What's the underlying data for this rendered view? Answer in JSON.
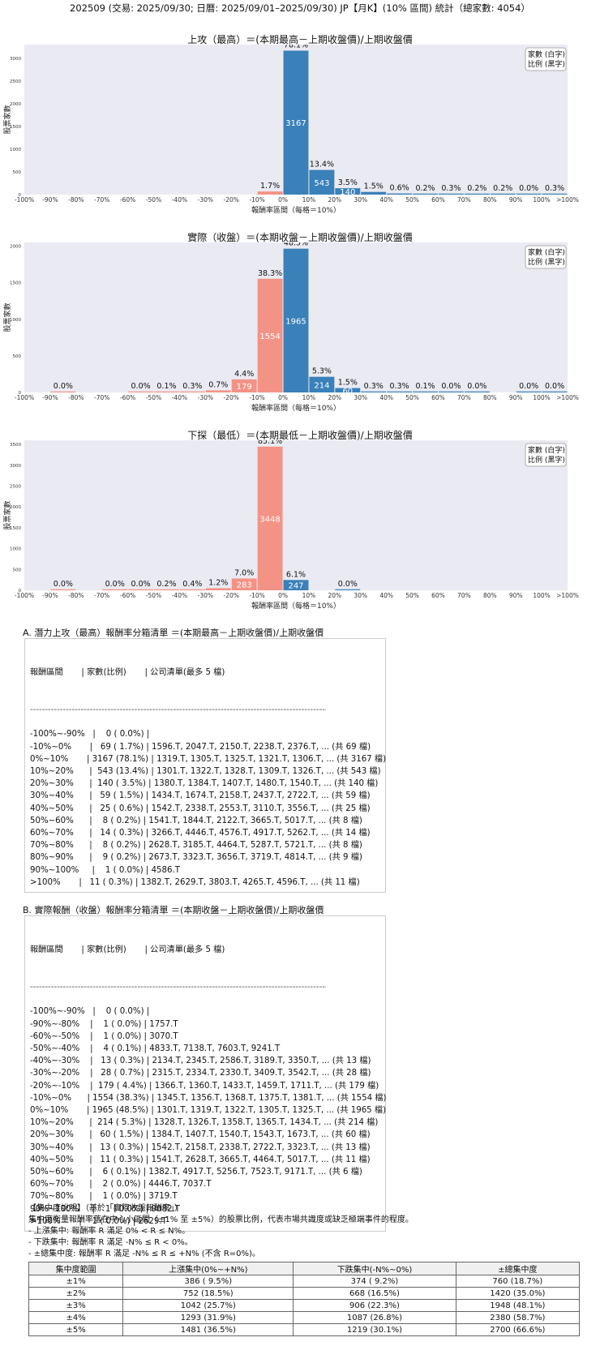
{
  "header": "202509 (交易: 2025/09/30; 日曆: 2025/09/01–2025/09/30) JP【月K】(10% 區間) 統計（總家數: 4054）",
  "legend_box": [
    "家數 (白字)",
    "比例 (黑字)"
  ],
  "colors": {
    "positive": "#3a80b9",
    "negative": "#f39386",
    "plot_bg": "#eaeaf2"
  },
  "chart_data": [
    {
      "type": "bar",
      "title": "上攻（最高）＝(本期最高－上期收盤價)/上期收盤價",
      "xlabel": "報酬率區間（每格＝10%）",
      "ylabel": "股票家數",
      "ylim": [
        0,
        3300
      ],
      "yticks": [
        0,
        500,
        1000,
        1500,
        2000,
        2500,
        3000
      ],
      "xtick_labels": [
        "-100%",
        "-90%",
        "-80%",
        "-70%",
        "-60%",
        "-50%",
        "-40%",
        "-30%",
        "-20%",
        "-10%",
        "0%",
        "10%",
        "20%",
        "30%",
        "40%",
        "50%",
        "60%",
        "70%",
        "80%",
        "90%",
        "100%",
        ">100%"
      ],
      "bins": [
        "-100%~-90%",
        "-90%~-80%",
        "-80%~-70%",
        "-70%~-60%",
        "-60%~-50%",
        "-50%~-40%",
        "-40%~-30%",
        "-30%~-20%",
        "-20%~-10%",
        "-10%~0%",
        "0%~10%",
        "10%~20%",
        "20%~30%",
        "30%~40%",
        "40%~50%",
        "50%~60%",
        "60%~70%",
        "70%~80%",
        "80%~90%",
        "90%~100%",
        ">100%"
      ],
      "values": [
        0,
        null,
        null,
        null,
        null,
        null,
        null,
        null,
        null,
        69,
        3167,
        543,
        140,
        59,
        25,
        8,
        14,
        8,
        9,
        1,
        11
      ],
      "pct_labels": [
        "",
        "",
        "",
        "",
        "",
        "",
        "",
        "",
        "",
        "1.7%",
        "78.1%",
        "13.4%",
        "3.5%",
        "1.5%",
        "0.6%",
        "0.2%",
        "0.3%",
        "0.2%",
        "0.2%",
        "0.0%",
        "0.3%"
      ],
      "count_labels": [
        "",
        "",
        "",
        "",
        "",
        "",
        "",
        "",
        "",
        "",
        "3167",
        "543",
        "140",
        "",
        "",
        "",
        "",
        "",
        "",
        "",
        ""
      ]
    },
    {
      "type": "bar",
      "title": "實際（收盤）＝(本期收盤－上期收盤價)/上期收盤價",
      "xlabel": "報酬率區間（每格＝10%）",
      "ylabel": "股票家數",
      "ylim": [
        0,
        2050
      ],
      "yticks": [
        0,
        500,
        1000,
        1500,
        2000
      ],
      "xtick_labels": [
        "-100%",
        "-90%",
        "-80%",
        "-70%",
        "-60%",
        "-50%",
        "-40%",
        "-30%",
        "-20%",
        "-10%",
        "0%",
        "10%",
        "20%",
        "30%",
        "40%",
        "50%",
        "60%",
        "70%",
        "80%",
        "90%",
        "100%",
        ">100%"
      ],
      "bins": [
        "-100%~-90%",
        "-90%~-80%",
        "-80%~-70%",
        "-70%~-60%",
        "-60%~-50%",
        "-50%~-40%",
        "-40%~-30%",
        "-30%~-20%",
        "-20%~-10%",
        "-10%~0%",
        "0%~10%",
        "10%~20%",
        "20%~30%",
        "30%~40%",
        "40%~50%",
        "50%~60%",
        "60%~70%",
        "70%~80%",
        "80%~90%",
        "90%~100%",
        ">100%"
      ],
      "values": [
        null,
        1,
        null,
        null,
        1,
        4,
        13,
        28,
        179,
        1554,
        1965,
        214,
        60,
        13,
        11,
        6,
        2,
        1,
        null,
        1,
        1
      ],
      "pct_labels": [
        "",
        "0.0%",
        "",
        "",
        "0.0%",
        "0.1%",
        "0.3%",
        "0.7%",
        "4.4%",
        "38.3%",
        "48.5%",
        "5.3%",
        "1.5%",
        "0.3%",
        "0.3%",
        "0.1%",
        "0.0%",
        "0.0%",
        "",
        "0.0%",
        "0.0%"
      ],
      "count_labels": [
        "",
        "",
        "",
        "",
        "",
        "",
        "",
        "",
        "179",
        "1554",
        "1965",
        "214",
        "60",
        "",
        "",
        "",
        "",
        "",
        "",
        "",
        ""
      ]
    },
    {
      "type": "bar",
      "title": "下探（最低）＝(本期最低－上期收盤價)/上期收盤價",
      "xlabel": "報酬率區間（每格＝10%）",
      "ylabel": "股票家數",
      "ylim": [
        0,
        3600
      ],
      "yticks": [
        0,
        500,
        1000,
        1500,
        2000,
        2500,
        3000,
        3500
      ],
      "xtick_labels": [
        "-100%",
        "-90%",
        "-80%",
        "-70%",
        "-60%",
        "-50%",
        "-40%",
        "-30%",
        "-20%",
        "-10%",
        "0%",
        "10%",
        "20%",
        "30%",
        "40%",
        "50%",
        "60%",
        "70%",
        "80%",
        "90%",
        "100%",
        ">100%"
      ],
      "bins": [
        "-100%~-90%",
        "-90%~-80%",
        "-80%~-70%",
        "-70%~-60%",
        "-60%~-50%",
        "-50%~-40%",
        "-40%~-30%",
        "-30%~-20%",
        "-20%~-10%",
        "-10%~0%",
        "0%~10%",
        "10%~20%",
        "20%~30%",
        "30%~40%",
        "40%~50%",
        "50%~60%",
        "60%~70%",
        "70%~80%",
        "80%~90%",
        "90%~100%",
        ">100%"
      ],
      "values": [
        null,
        1,
        null,
        1,
        1,
        9,
        17,
        50,
        283,
        3448,
        247,
        null,
        1,
        null,
        null,
        null,
        null,
        null,
        null,
        null,
        null
      ],
      "pct_labels": [
        "",
        "0.0%",
        "",
        "0.0%",
        "0.0%",
        "0.2%",
        "0.4%",
        "1.2%",
        "7.0%",
        "85.1%",
        "6.1%",
        "",
        "0.0%",
        "",
        "",
        "",
        "",
        "",
        "",
        "",
        ""
      ],
      "count_labels": [
        "",
        "",
        "",
        "",
        "",
        "",
        "",
        "",
        "283",
        "3448",
        "247",
        "",
        "",
        "",
        "",
        "",
        "",
        "",
        "",
        "",
        ""
      ]
    }
  ],
  "sectionA": {
    "title": "A. 潛力上攻（最高）報酬率分箱清單 ＝(本期最高－上期收盤價)/上期收盤價",
    "header": "報酬區間       | 家數(比例)       | 公司清單(最多 5 檔)",
    "dash": "------------------------------------------------------------------------------------------------------------------",
    "rows": [
      "-100%~-90%   |    0 ( 0.0%) |",
      "-10%~0%       |   69 ( 1.7%) | 1596.T, 2047.T, 2150.T, 2238.T, 2376.T, ... (共 69 檔)",
      "0%~10%       | 3167 (78.1%) | 1319.T, 1305.T, 1325.T, 1321.T, 1306.T, ... (共 3167 檔)",
      "10%~20%      |  543 (13.4%) | 1301.T, 1322.T, 1328.T, 1309.T, 1326.T, ... (共 543 檔)",
      "20%~30%      |  140 ( 3.5%) | 1380.T, 1384.T, 1407.T, 1480.T, 1540.T, ... (共 140 檔)",
      "30%~40%      |   59 ( 1.5%) | 1434.T, 1674.T, 2158.T, 2437.T, 2722.T, ... (共 59 檔)",
      "40%~50%      |   25 ( 0.6%) | 1542.T, 2338.T, 2553.T, 3110.T, 3556.T, ... (共 25 檔)",
      "50%~60%      |    8 ( 0.2%) | 1541.T, 1844.T, 2122.T, 3665.T, 5017.T, ... (共 8 檔)",
      "60%~70%      |   14 ( 0.3%) | 3266.T, 4446.T, 4576.T, 4917.T, 5262.T, ... (共 14 檔)",
      "70%~80%      |    8 ( 0.2%) | 2628.T, 3185.T, 4464.T, 5287.T, 5721.T, ... (共 8 檔)",
      "80%~90%      |    9 ( 0.2%) | 2673.T, 3323.T, 3656.T, 3719.T, 4814.T, ... (共 9 檔)",
      "90%~100%     |    1 ( 0.0%) | 4586.T",
      ">100%       |   11 ( 0.3%) | 1382.T, 2629.T, 3803.T, 4265.T, 4596.T, ... (共 11 檔)"
    ]
  },
  "sectionB": {
    "title": "B. 實際報酬（收盤）報酬率分箱清單 ＝(本期收盤－上期收盤價)/上期收盤價",
    "header": "報酬區間       | 家數(比例)       | 公司清單(最多 5 檔)",
    "dash": "------------------------------------------------------------------------------------------------------------------",
    "rows": [
      "-100%~-90%   |    0 ( 0.0%) |",
      "-90%~-80%    |    1 ( 0.0%) | 1757.T",
      "-60%~-50%    |    1 ( 0.0%) | 3070.T",
      "-50%~-40%    |    4 ( 0.1%) | 4833.T, 7138.T, 7603.T, 9241.T",
      "-40%~-30%    |   13 ( 0.3%) | 2134.T, 2345.T, 2586.T, 3189.T, 3350.T, ... (共 13 檔)",
      "-30%~-20%    |   28 ( 0.7%) | 2315.T, 2334.T, 2330.T, 3409.T, 3542.T, ... (共 28 檔)",
      "-20%~-10%    |  179 ( 4.4%) | 1366.T, 1360.T, 1433.T, 1459.T, 1711.T, ... (共 179 檔)",
      "-10%~0%      | 1554 (38.3%) | 1345.T, 1356.T, 1368.T, 1375.T, 1381.T, ... (共 1554 檔)",
      "0%~10%       | 1965 (48.5%) | 1301.T, 1319.T, 1322.T, 1305.T, 1325.T, ... (共 1965 檔)",
      "10%~20%      |  214 ( 5.3%) | 1328.T, 1326.T, 1358.T, 1365.T, 1434.T, ... (共 214 檔)",
      "20%~30%      |   60 ( 1.5%) | 1384.T, 1407.T, 1540.T, 1543.T, 1673.T, ... (共 60 檔)",
      "30%~40%      |   13 ( 0.3%) | 1542.T, 2158.T, 2338.T, 2722.T, 3323.T, ... (共 13 檔)",
      "40%~50%      |   11 ( 0.3%) | 1541.T, 2628.T, 3665.T, 4464.T, 5017.T, ... (共 11 檔)",
      "50%~60%      |    6 ( 0.1%) | 1382.T, 4917.T, 5256.T, 7523.T, 9171.T, ... (共 6 檔)",
      "60%~70%      |    2 ( 0.0%) | 4446.T, 7037.T",
      "70%~80%      |    1 ( 0.0%) | 3719.T",
      "90%~100%     |    1 ( 0.0%) | 9082.T",
      ">100%       |    1 ( 0.0%) | 2629.T"
    ]
  },
  "notes": {
    "title": "【集中度說明】（基於「實際收盤報酬率」）",
    "lines": [
      "集中度衡量報酬率落在中心小區間（±1% 至 ±5%）的股票比例，代表市場共識度或缺乏極端事件的程度。",
      " - 上漲集中: 報酬率 R 滿足 0% < R ≤ N%。",
      " - 下跌集中: 報酬率 R 滿足 -N% ≤ R < 0%。",
      " - ±總集中度: 報酬率 R 滿足 -N% ≤ R ≤ +N% (不含 R=0%)。"
    ]
  },
  "concentration_table": {
    "headers": [
      "集中度範圍",
      "上漲集中(0%~+N%)",
      "下跌集中(-N%~0%)",
      "±總集中度"
    ],
    "rows": [
      [
        "±1%",
        "386 ( 9.5%)",
        "374 ( 9.2%)",
        "760 (18.7%)"
      ],
      [
        "±2%",
        "752 (18.5%)",
        "668 (16.5%)",
        "1420 (35.0%)"
      ],
      [
        "±3%",
        "1042 (25.7%)",
        "906 (22.3%)",
        "1948 (48.1%)"
      ],
      [
        "±4%",
        "1293 (31.9%)",
        "1087 (26.8%)",
        "2380 (58.7%)"
      ],
      [
        "±5%",
        "1481 (36.5%)",
        "1219 (30.1%)",
        "2700 (66.6%)"
      ]
    ]
  }
}
